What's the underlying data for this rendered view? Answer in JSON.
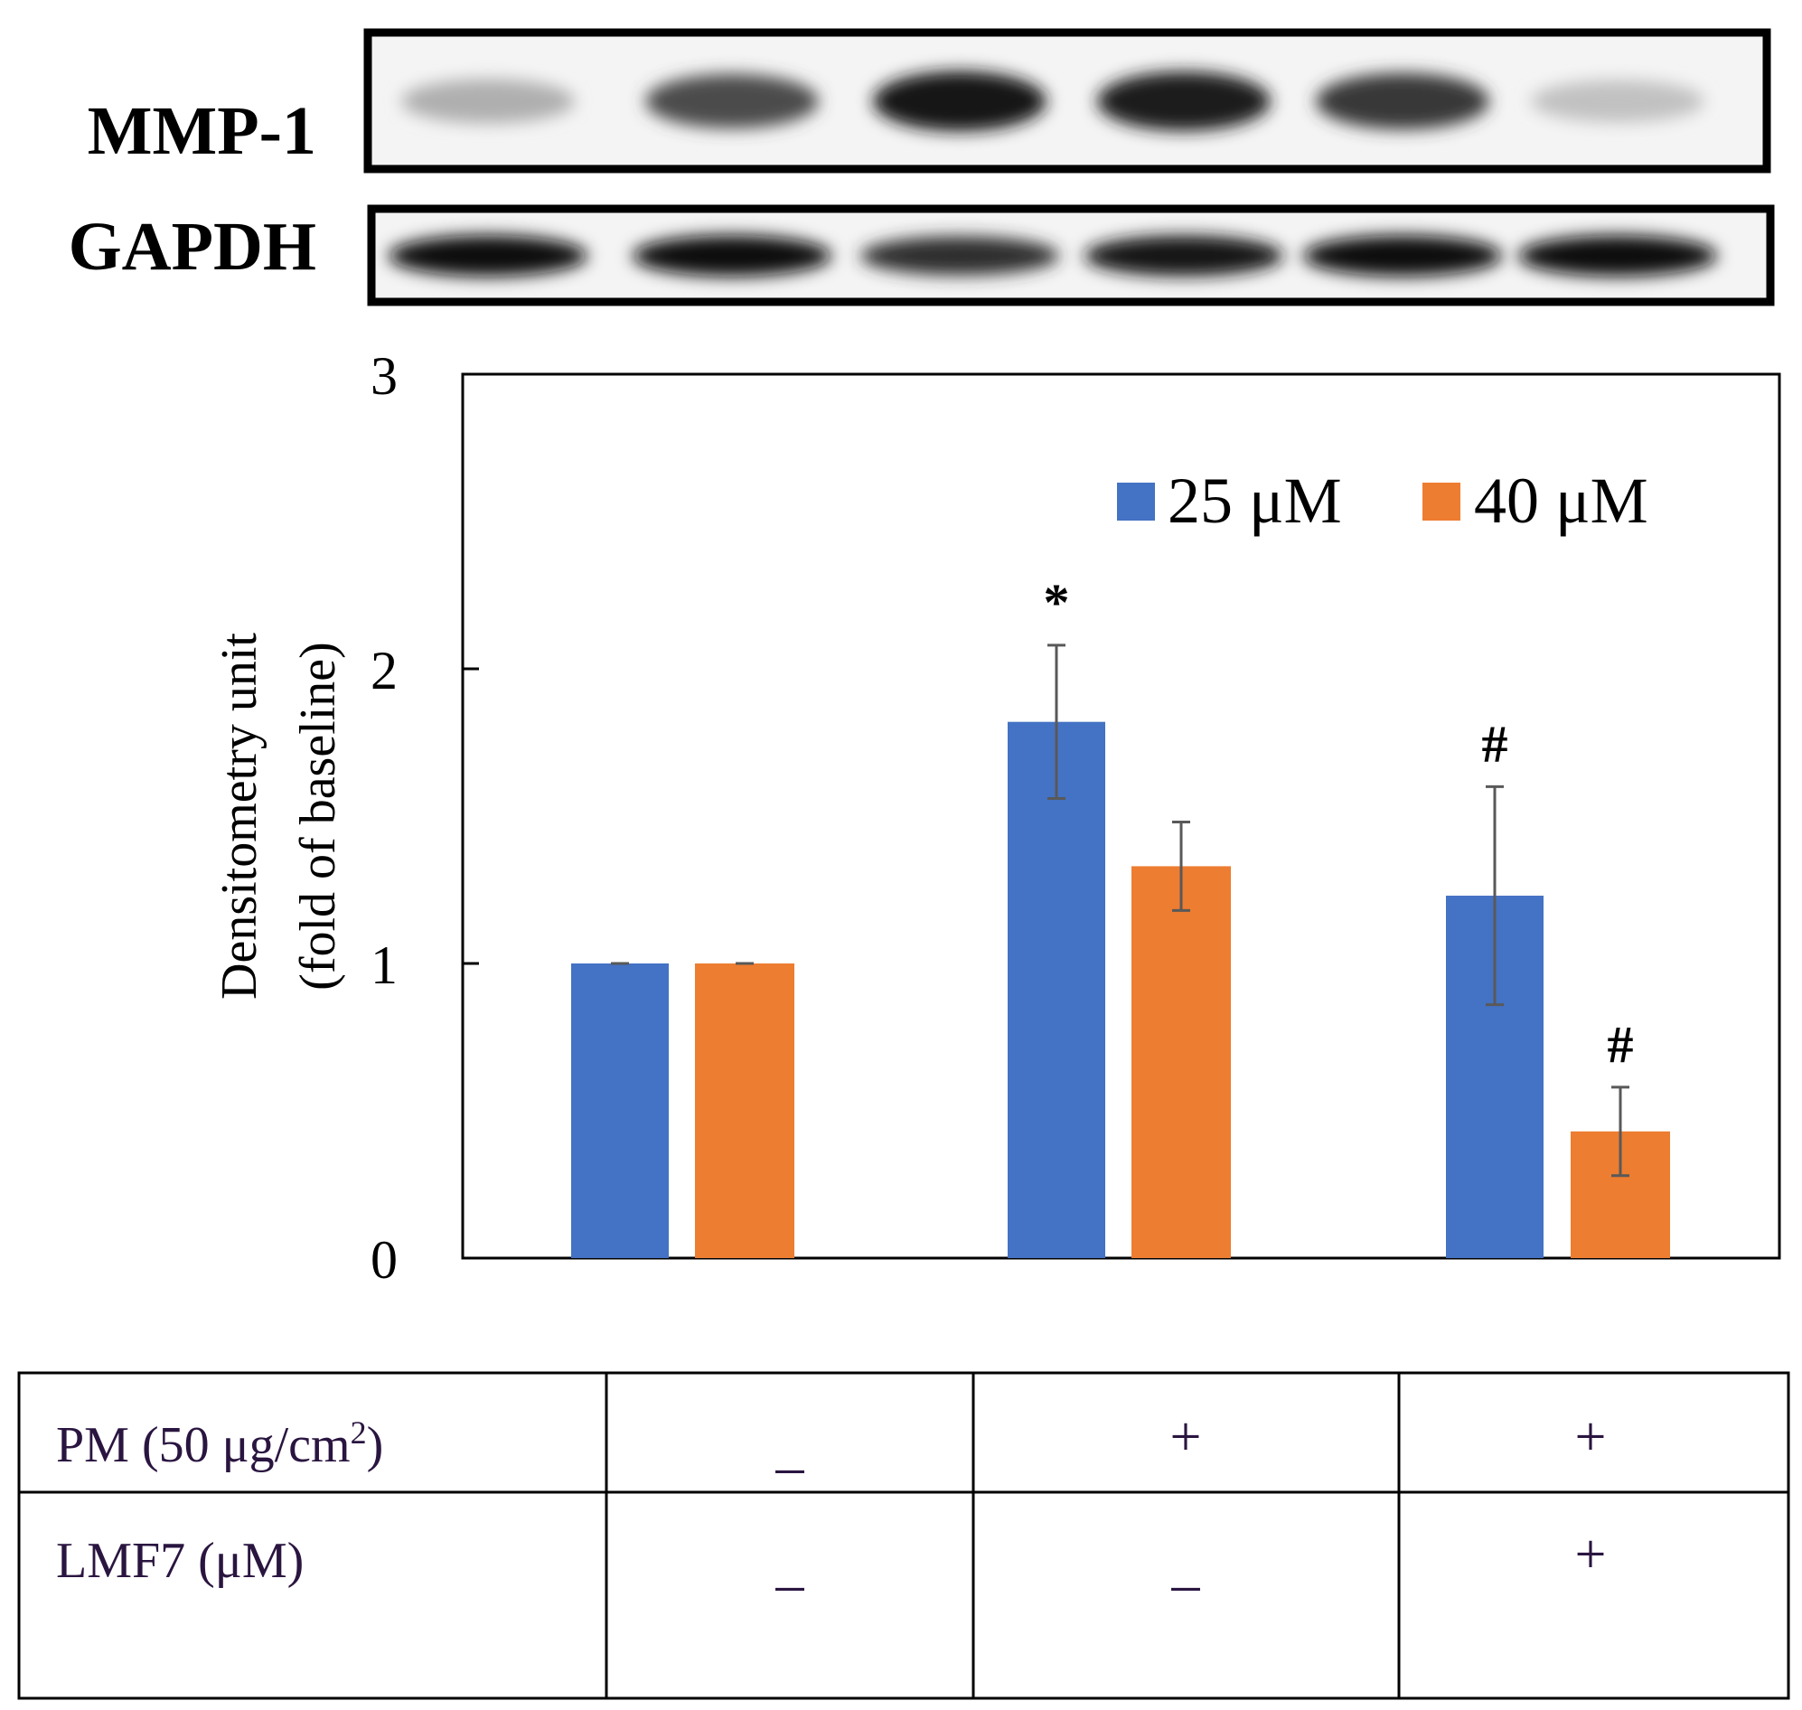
{
  "blot": {
    "lane_count": 6,
    "rows": [
      {
        "label": "MMP-1",
        "band_intensity": [
          0.3,
          0.72,
          0.95,
          0.92,
          0.8,
          0.22
        ]
      },
      {
        "label": "GAPDH",
        "band_intensity": [
          0.98,
          0.98,
          0.85,
          0.95,
          0.97,
          0.97
        ]
      }
    ]
  },
  "chart_data": {
    "type": "bar",
    "title": "",
    "xlabel": "",
    "ylabel_line1": "Densitometry unit",
    "ylabel_line2": "(fold of baseline)",
    "ylim": [
      0,
      3
    ],
    "yticks": [
      "0",
      "1",
      "2",
      "3"
    ],
    "groups": 3,
    "series": [
      {
        "name": "25 μM",
        "color": "#4472c4",
        "values": [
          1.0,
          1.82,
          1.23
        ],
        "errors": [
          0.0,
          0.26,
          0.37
        ]
      },
      {
        "name": "40 μM",
        "color": "#ed7d31",
        "values": [
          1.0,
          1.33,
          0.43
        ],
        "errors": [
          0.0,
          0.15,
          0.15
        ]
      }
    ],
    "annotations": [
      {
        "text": "*",
        "group": 1,
        "series": 0
      },
      {
        "text": "#",
        "group": 2,
        "series": 0
      },
      {
        "text": "#",
        "group": 2,
        "series": 1
      }
    ],
    "error_color": "#595959"
  },
  "treatment_table": {
    "rows": [
      {
        "label_main": "PM (50 μg/cm",
        "label_sup": "2",
        "label_end": ")",
        "values": [
          "_",
          "+",
          "+"
        ]
      },
      {
        "label_main": "LMF7 (μM)",
        "label_sup": "",
        "label_end": "",
        "values": [
          "_",
          "_",
          "+"
        ]
      }
    ]
  }
}
